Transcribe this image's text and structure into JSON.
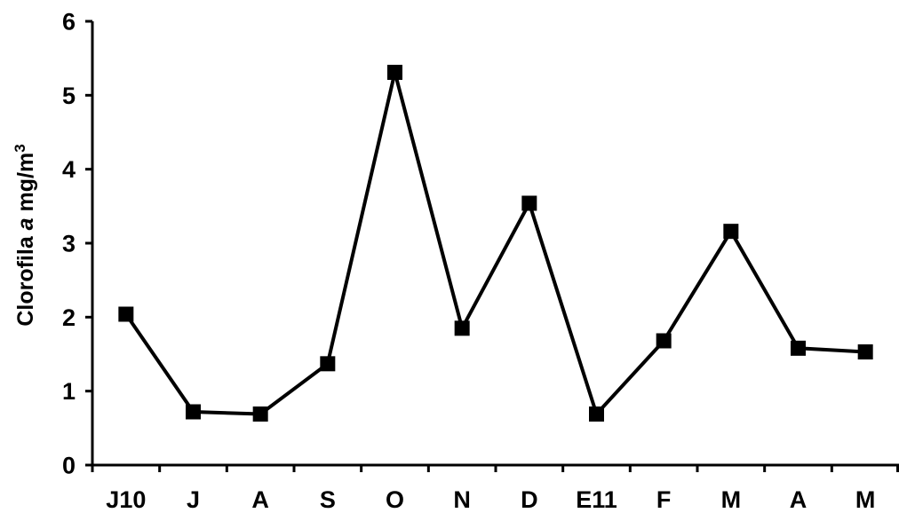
{
  "chart_data": {
    "type": "line",
    "title": "",
    "xlabel": "",
    "ylabel": {
      "prefix": "Clorofila ",
      "italic": "a",
      "unit": " mg/m",
      "superscript": "3"
    },
    "categories": [
      "J10",
      "J",
      "A",
      "S",
      "O",
      "N",
      "D",
      "E11",
      "F",
      "M",
      "A",
      "M"
    ],
    "series": [
      {
        "values": [
          2.04,
          0.72,
          0.69,
          1.37,
          5.31,
          1.85,
          3.54,
          0.69,
          1.68,
          3.16,
          1.58,
          1.53
        ]
      }
    ],
    "ylim": [
      0,
      6
    ],
    "yticks": [
      "0",
      "1",
      "2",
      "3",
      "4",
      "5",
      "6"
    ],
    "grid": false,
    "legend": "none",
    "marker": "square",
    "colors": {
      "line": "#000000",
      "marker": "#000000",
      "axis": "#000000"
    }
  }
}
